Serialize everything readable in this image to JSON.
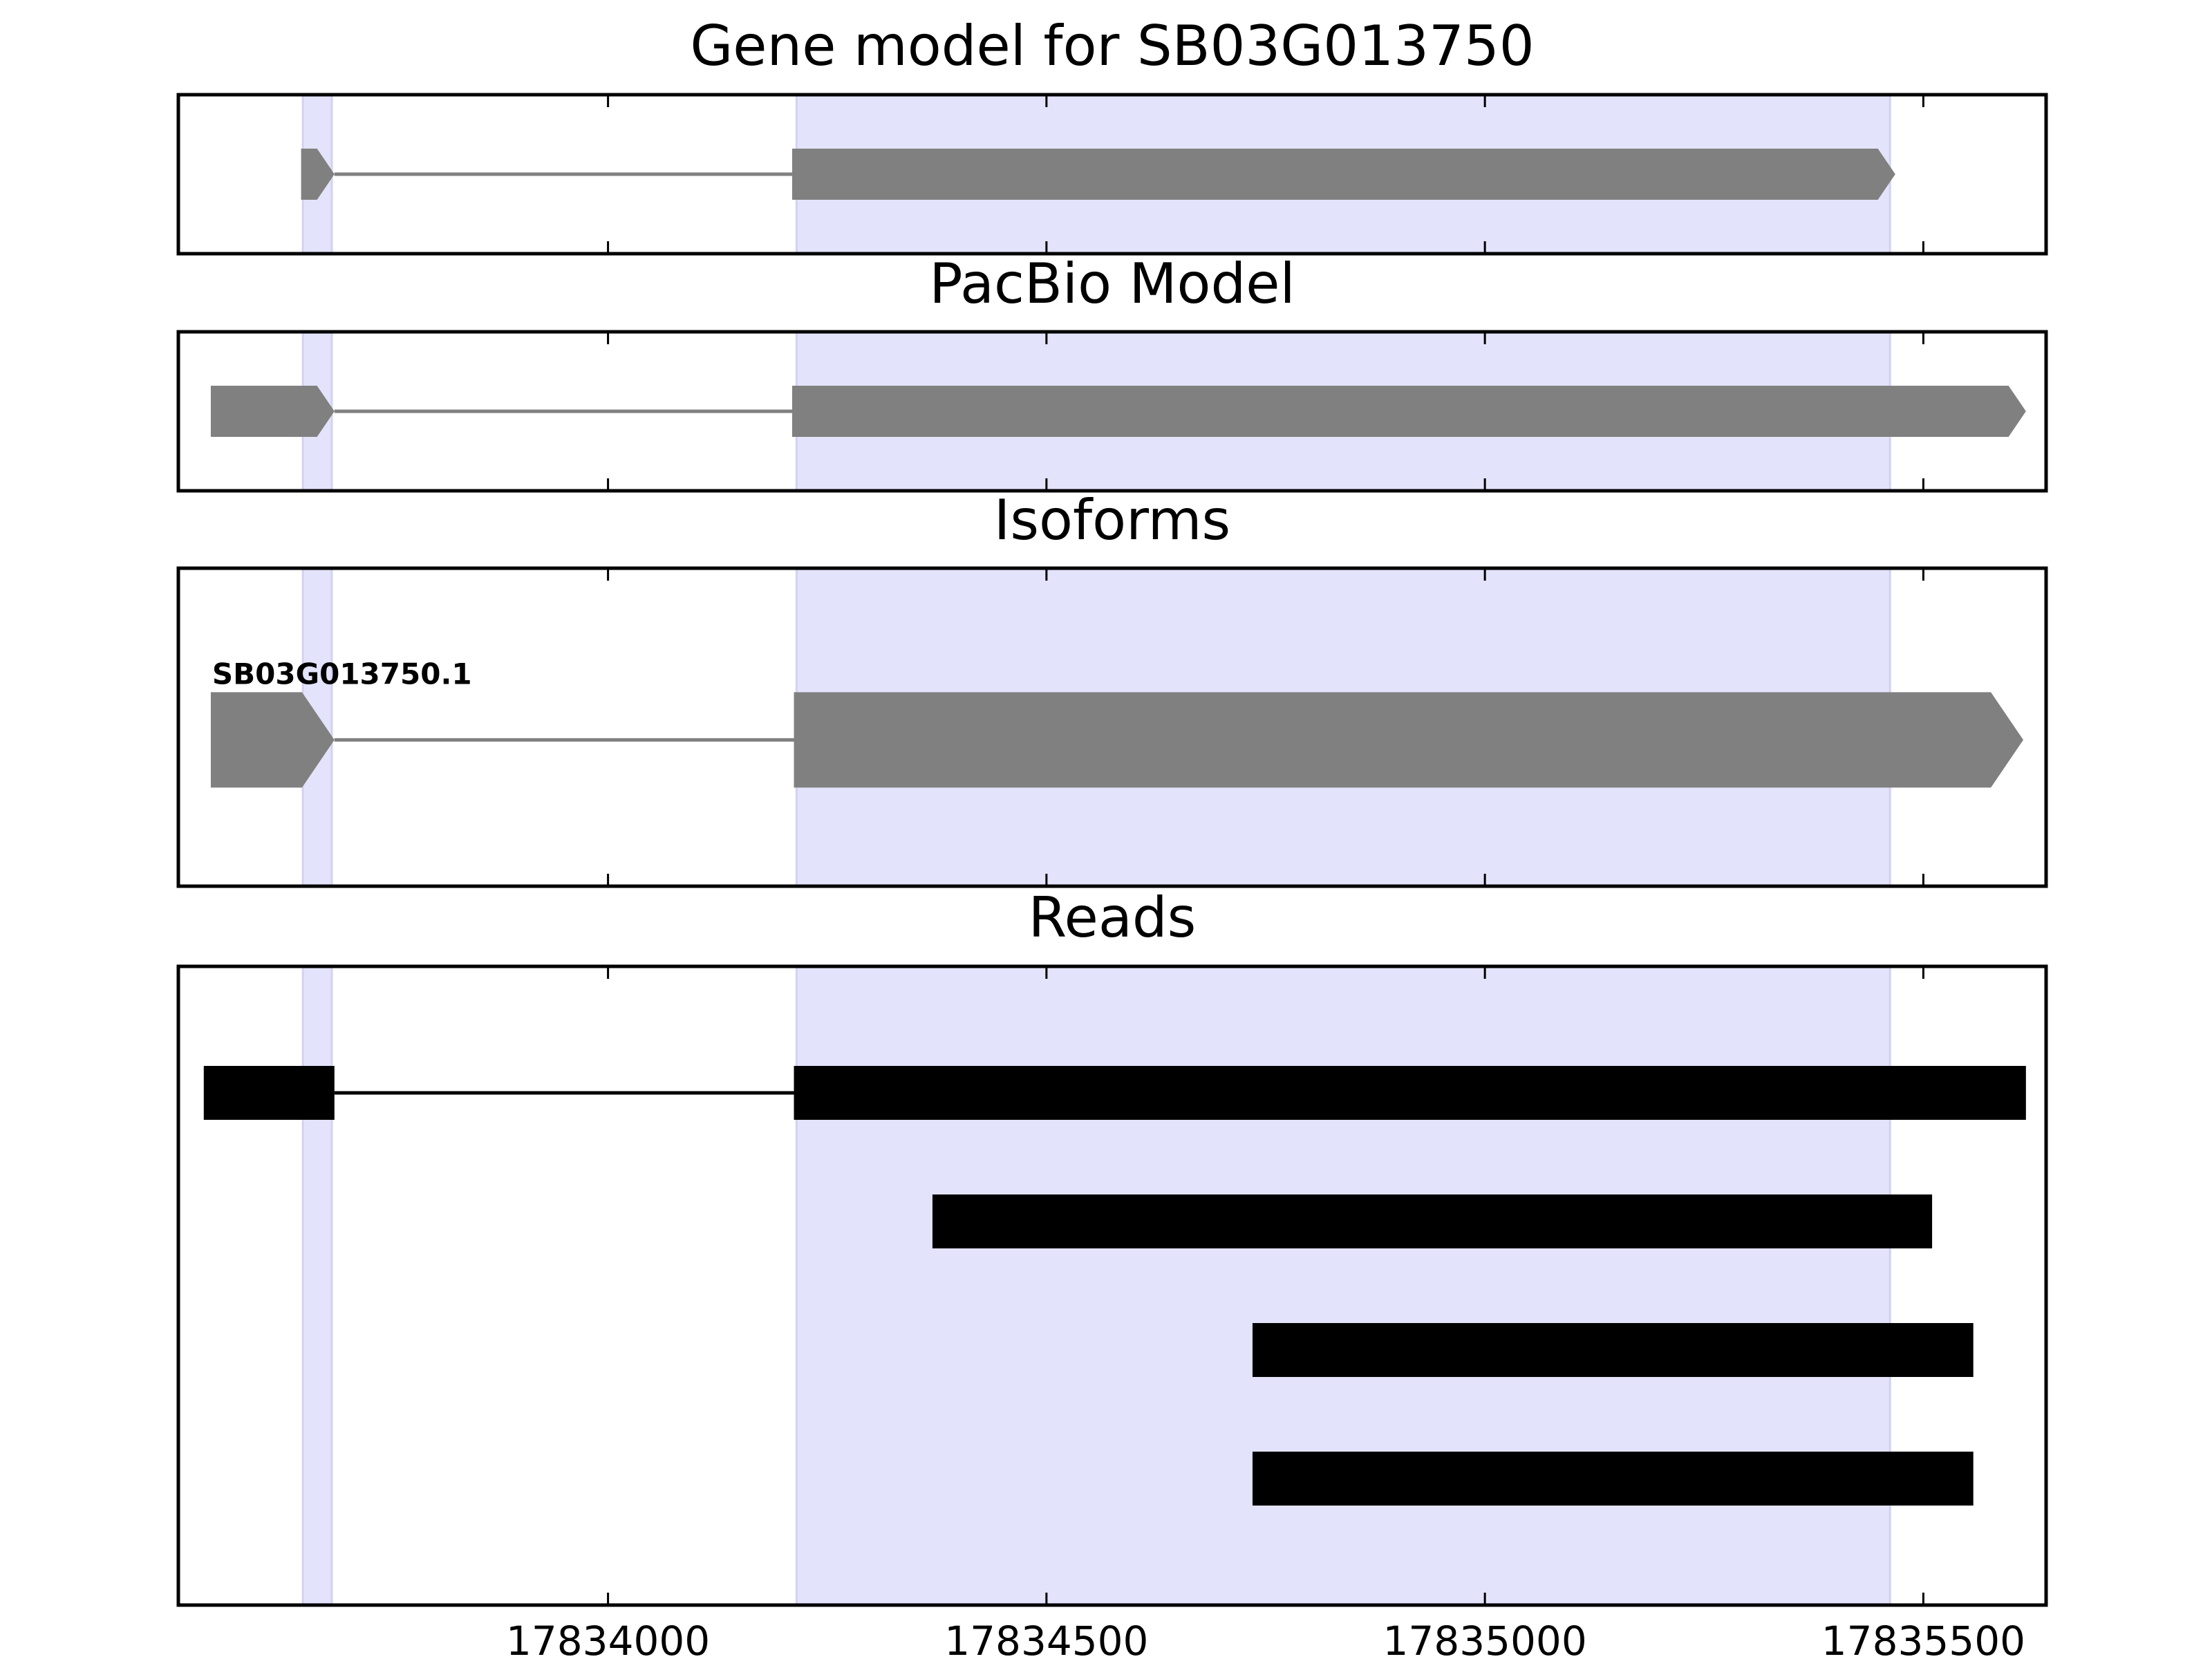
{
  "chart_data": {
    "type": "gene-model-tracks",
    "xlim": [
      17833510,
      17835640
    ],
    "xticks": [
      17834000,
      17834500,
      17835000,
      17835500
    ],
    "xtick_labels": [
      "17834000",
      "17834500",
      "17835000",
      "17835500"
    ],
    "highlight_regions": [
      [
        17833652,
        17833685
      ],
      [
        17834215,
        17835462
      ]
    ],
    "colors": {
      "highlight": "#e3e3fc",
      "model": "#808080",
      "read": "#000000",
      "frame": "#000000"
    },
    "panels": [
      {
        "key": "gene_model",
        "title": "Gene model for SB03G013750",
        "strand": "+",
        "features": [
          {
            "label": "",
            "exons": [
              [
                17833650,
                17833688
              ],
              [
                17834210,
                17835468
              ]
            ]
          }
        ]
      },
      {
        "key": "pacbio",
        "title": "PacBio Model",
        "strand": "+",
        "features": [
          {
            "label": "",
            "exons": [
              [
                17833547,
                17833688
              ],
              [
                17834210,
                17835617
              ]
            ]
          }
        ]
      },
      {
        "key": "isoforms",
        "title": "Isoforms",
        "strand": "+",
        "features": [
          {
            "label": "SB03G013750.1",
            "exons": [
              [
                17833547,
                17833688
              ],
              [
                17834212,
                17835614
              ]
            ]
          }
        ]
      },
      {
        "key": "reads",
        "title": "Reads",
        "features": [
          {
            "exons": [
              [
                17833539,
                17833688
              ],
              [
                17834212,
                17835617
              ]
            ]
          },
          {
            "exons": [
              [
                17834370,
                17835510
              ]
            ]
          },
          {
            "exons": [
              [
                17834735,
                17835557
              ]
            ]
          },
          {
            "exons": [
              [
                17834735,
                17835557
              ]
            ]
          }
        ]
      }
    ]
  }
}
